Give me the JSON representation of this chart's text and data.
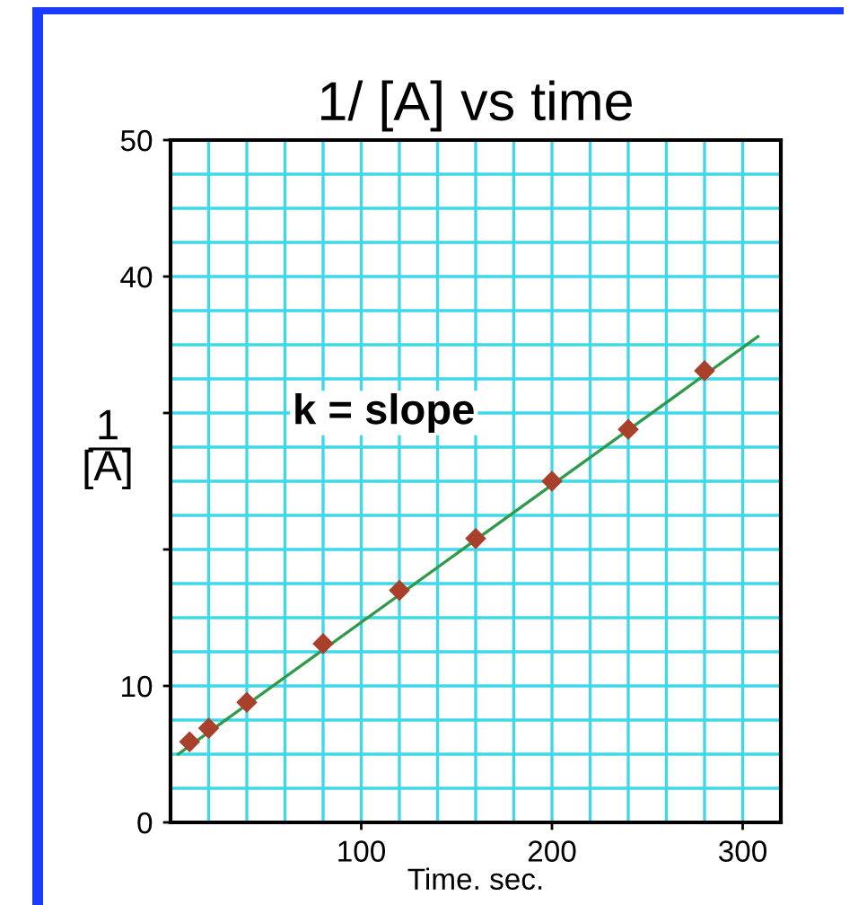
{
  "chart_data": {
    "type": "scatter",
    "title": "1/ [A] vs time",
    "xlabel": "Time. sec.",
    "ylabel": "1\n[A]",
    "annotations": [
      "k = slope"
    ],
    "series": [
      {
        "color": "#a8402c",
        "x": [
          10,
          20,
          40,
          80,
          120,
          160,
          200,
          240,
          280
        ],
        "values": [
          5.9,
          6.9,
          8.8,
          13.1,
          17.0,
          20.8,
          25.0,
          28.8,
          33.1
        ],
        "marker": "diamond"
      },
      {
        "type": "line",
        "color": "#2e9a4a",
        "x": [
          4,
          308
        ],
        "values": [
          5.0,
          35.6
        ],
        "marker": "none",
        "line_style": "solid"
      }
    ],
    "xlim": [
      0,
      320
    ],
    "xticks": [
      100,
      200,
      300
    ],
    "ylim": [
      0,
      50
    ],
    "yticks": [
      0,
      10,
      {
        "value": 20,
        "label": null
      },
      {
        "value": 30,
        "label": null
      },
      40,
      50
    ],
    "grid": true,
    "legend": false
  }
}
